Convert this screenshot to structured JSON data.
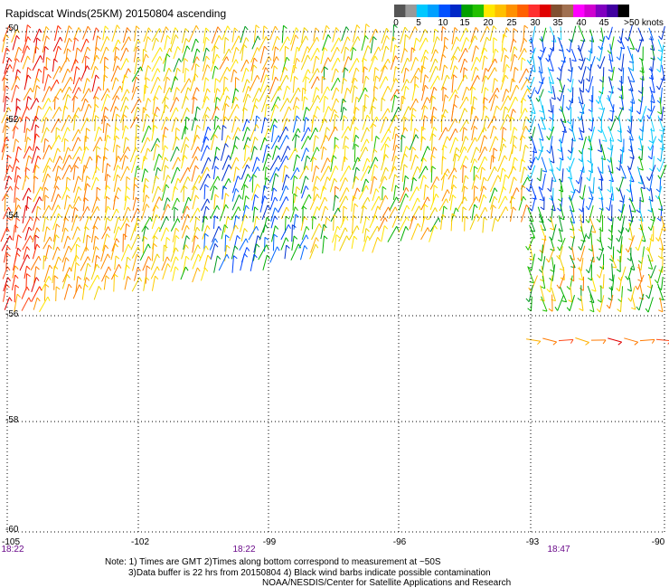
{
  "map": {
    "title": "Rapidscat Winds(25KM)  20150804  ascending",
    "lat_labels": [
      "-50",
      "-52",
      "-54",
      "-56",
      "-58",
      "-60"
    ],
    "lon_labels": [
      "-105",
      "-102",
      "-99",
      "-96",
      "-93",
      "-90"
    ],
    "time_labels": [
      "18:22",
      "18:22",
      "18:47"
    ],
    "grid": true,
    "colorbar": {
      "labels": [
        "0",
        "5",
        "10",
        "15",
        "20",
        "25",
        "30",
        "35",
        "40",
        "45",
        ">50 knots"
      ],
      "colors": [
        "#555555",
        "#999999",
        "#00c8ff",
        "#00a0ff",
        "#0050ff",
        "#0028c8",
        "#00a000",
        "#22c000",
        "#ffe800",
        "#ffc000",
        "#ff9000",
        "#ff6000",
        "#ff3030",
        "#e00000",
        "#805030",
        "#a07050",
        "#ff00ff",
        "#d000d0",
        "#8000c0",
        "#4000a0",
        "#000000"
      ]
    },
    "notes": [
      "Note: 1) Times are GMT 2)Times along bottom correspond to measurement at ~50S",
      "3)Data buffer is 22 hrs from 20150804 4) Black wind barbs indicate possible contamination",
      "NOAA/NESDIS/Center for Satellite Applications and Research"
    ]
  }
}
